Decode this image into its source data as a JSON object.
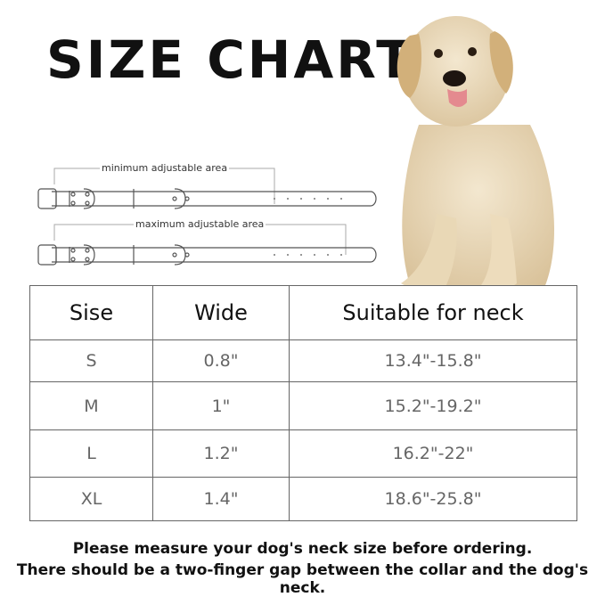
{
  "title": "SIZE CHART",
  "collar_diagrams": [
    {
      "label": "minimum adjustable area"
    },
    {
      "label": "maximum adjustable area"
    }
  ],
  "image": {
    "subject": "golden retriever",
    "icon": "dog-photo"
  },
  "table": {
    "headers": [
      "Sise",
      "Wide",
      "Suitable for neck"
    ],
    "rows": [
      [
        "S",
        "0.8\"",
        "13.4\"-15.8\""
      ],
      [
        "M",
        "1\"",
        "15.2\"-19.2\""
      ],
      [
        "L",
        "1.2\"",
        "16.2\"-22\""
      ],
      [
        "XL",
        "1.4\"",
        "18.6\"-25.8\""
      ]
    ]
  },
  "notes": [
    "Please measure your dog's neck size before ordering.",
    "There should be a two-finger gap between the collar and the dog's neck."
  ],
  "colors": {
    "dog": "#e8d7b8",
    "text": "#111111",
    "table_text": "#666666"
  }
}
